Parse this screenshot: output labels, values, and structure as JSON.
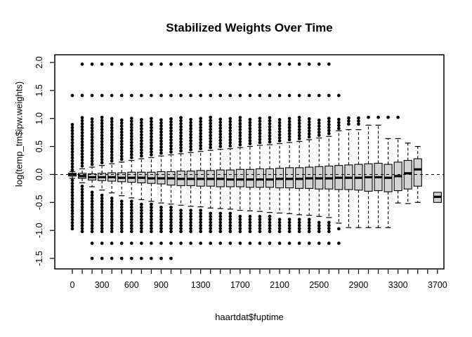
{
  "title": "Stabilized Weights Over Time",
  "colors": {
    "background": "#ffffff",
    "box_fill": "#d3d3d3",
    "stroke": "#000000",
    "reference_line": "#000000"
  },
  "chart_data": {
    "type": "boxplot",
    "title": "Stabilized Weights Over Time",
    "xlabel": "haartdat$fuptime",
    "ylabel": "log(temp_tm$ipw.weights)",
    "grid": false,
    "reference_line_y": 0,
    "reference_line_style": "dashed",
    "xlim": [
      -178,
      3765
    ],
    "ylim": [
      -1.6875,
      2.1375
    ],
    "x_minor_tick_step": 100,
    "x_minor_tick_max": 3700,
    "x_ticks": [
      {
        "v": 0,
        "label": "0"
      },
      {
        "v": 300,
        "label": "300"
      },
      {
        "v": 600,
        "label": "600"
      },
      {
        "v": 900,
        "label": "900"
      },
      {
        "v": 1300,
        "label": "1300"
      },
      {
        "v": 1700,
        "label": "1700"
      },
      {
        "v": 2100,
        "label": "2100"
      },
      {
        "v": 2500,
        "label": "2500"
      },
      {
        "v": 2900,
        "label": "2900"
      },
      {
        "v": 3300,
        "label": "3300"
      },
      {
        "v": 3700,
        "label": "3700"
      }
    ],
    "y_ticks": [
      {
        "v": -1.5,
        "label": "-1.5"
      },
      {
        "v": -1.0,
        "label": "-1.0"
      },
      {
        "v": -0.5,
        "label": "-0.5"
      },
      {
        "v": 0.0,
        "label": "0.0"
      },
      {
        "v": 0.5,
        "label": "0.5"
      },
      {
        "v": 1.0,
        "label": "1.0"
      },
      {
        "v": 1.5,
        "label": "1.5"
      },
      {
        "v": 2.0,
        "label": "2.0"
      }
    ],
    "outlier_dot_step": 0.054,
    "boxes": [
      {
        "d": 0,
        "q1": -0.03,
        "m": 0.0,
        "q3": 0.02,
        "lo": -0.07,
        "hi": 0.05,
        "oh": [
          0.08,
          0.92
        ],
        "ol": [
          -0.97,
          -0.1
        ],
        "x": [
          1.41
        ]
      },
      {
        "d": 100,
        "q1": -0.07,
        "m": -0.03,
        "q3": 0.02,
        "lo": -0.15,
        "hi": 0.1,
        "oh": [
          0.15,
          1.02
        ],
        "ol": [
          -1.02,
          -0.2
        ],
        "x": [
          1.41,
          1.97
        ]
      },
      {
        "d": 200,
        "q1": -0.1,
        "m": -0.05,
        "q3": 0.01,
        "lo": -0.22,
        "hi": 0.13,
        "oh": [
          0.18,
          1.02
        ],
        "ol": [
          -1.02,
          -0.27
        ],
        "x": [
          1.41,
          1.97,
          -1.23,
          -1.5
        ]
      },
      {
        "d": 300,
        "q1": -0.11,
        "m": -0.05,
        "q3": 0.02,
        "lo": -0.28,
        "hi": 0.16,
        "oh": [
          0.21,
          1.02
        ],
        "ol": [
          -1.02,
          -0.33
        ],
        "x": [
          1.41,
          1.97,
          -1.23,
          -1.5
        ]
      },
      {
        "d": 400,
        "q1": -0.12,
        "m": -0.05,
        "q3": 0.03,
        "lo": -0.33,
        "hi": 0.19,
        "oh": [
          0.24,
          1.02
        ],
        "ol": [
          -1.02,
          -0.38
        ],
        "x": [
          1.41,
          1.97,
          -1.23,
          -1.5
        ]
      },
      {
        "d": 500,
        "q1": -0.13,
        "m": -0.06,
        "q3": 0.03,
        "lo": -0.38,
        "hi": 0.22,
        "oh": [
          0.27,
          1.02
        ],
        "ol": [
          -1.02,
          -0.43
        ],
        "x": [
          1.41,
          1.97,
          -1.23,
          -1.5
        ]
      },
      {
        "d": 600,
        "q1": -0.14,
        "m": -0.06,
        "q3": 0.04,
        "lo": -0.42,
        "hi": 0.25,
        "oh": [
          0.3,
          1.02
        ],
        "ol": [
          -1.02,
          -0.47
        ],
        "x": [
          1.41,
          1.97,
          -1.23,
          -1.5
        ]
      },
      {
        "d": 700,
        "q1": -0.15,
        "m": -0.06,
        "q3": 0.04,
        "lo": -0.45,
        "hi": 0.28,
        "oh": [
          0.33,
          1.02
        ],
        "ol": [
          -1.02,
          -0.5
        ],
        "x": [
          1.41,
          1.97,
          -1.23,
          -1.5
        ]
      },
      {
        "d": 800,
        "q1": -0.16,
        "m": -0.07,
        "q3": 0.04,
        "lo": -0.48,
        "hi": 0.3,
        "oh": [
          0.35,
          1.02
        ],
        "ol": [
          -1.02,
          -0.53
        ],
        "x": [
          1.41,
          1.97,
          -1.23,
          -1.5
        ]
      },
      {
        "d": 900,
        "q1": -0.17,
        "m": -0.07,
        "q3": 0.05,
        "lo": -0.51,
        "hi": 0.33,
        "oh": [
          0.38,
          1.02
        ],
        "ol": [
          -1.02,
          -0.56
        ],
        "x": [
          1.41,
          1.97,
          -1.23,
          -1.5
        ]
      },
      {
        "d": 1000,
        "q1": -0.19,
        "m": -0.07,
        "q3": 0.05,
        "lo": -0.53,
        "hi": 0.35,
        "oh": [
          0.4,
          1.02
        ],
        "ol": [
          -1.02,
          -0.58
        ],
        "x": [
          1.41,
          1.97,
          -1.23,
          -1.5
        ]
      },
      {
        "d": 1100,
        "q1": -0.2,
        "m": -0.08,
        "q3": 0.06,
        "lo": -0.55,
        "hi": 0.37,
        "oh": [
          0.42,
          1.02
        ],
        "ol": [
          -1.02,
          -0.6
        ],
        "x": [
          1.41,
          1.97,
          -1.23
        ]
      },
      {
        "d": 1200,
        "q1": -0.2,
        "m": -0.08,
        "q3": 0.06,
        "lo": -0.57,
        "hi": 0.39,
        "oh": [
          0.44,
          1.02
        ],
        "ol": [
          -1.02,
          -0.62
        ],
        "x": [
          1.41,
          1.97,
          -1.23
        ]
      },
      {
        "d": 1300,
        "q1": -0.21,
        "m": -0.08,
        "q3": 0.07,
        "lo": -0.58,
        "hi": 0.41,
        "oh": [
          0.46,
          1.02
        ],
        "ol": [
          -1.02,
          -0.64
        ],
        "x": [
          1.41,
          1.97,
          -1.23
        ]
      },
      {
        "d": 1400,
        "q1": -0.21,
        "m": -0.08,
        "q3": 0.07,
        "lo": -0.6,
        "hi": 0.43,
        "oh": [
          0.48,
          1.02
        ],
        "ol": [
          -1.02,
          -0.66
        ],
        "x": [
          1.41,
          1.97,
          -1.23
        ]
      },
      {
        "d": 1500,
        "q1": -0.22,
        "m": -0.08,
        "q3": 0.08,
        "lo": -0.61,
        "hi": 0.45,
        "oh": [
          0.5,
          1.02
        ],
        "ol": [
          -1.02,
          -0.67
        ],
        "x": [
          1.41,
          1.97,
          -1.23
        ]
      },
      {
        "d": 1600,
        "q1": -0.22,
        "m": -0.09,
        "q3": 0.08,
        "lo": -0.62,
        "hi": 0.46,
        "oh": [
          0.51,
          1.02
        ],
        "ol": [
          -1.02,
          -0.69
        ],
        "x": [
          1.41,
          1.97,
          -1.23
        ]
      },
      {
        "d": 1700,
        "q1": -0.22,
        "m": -0.09,
        "q3": 0.09,
        "lo": -0.64,
        "hi": 0.48,
        "oh": [
          0.53,
          1.02
        ],
        "ol": [
          -1.02,
          -0.7
        ],
        "x": [
          1.41,
          1.97,
          -1.23
        ]
      },
      {
        "d": 1800,
        "q1": -0.23,
        "m": -0.09,
        "q3": 0.09,
        "lo": -0.65,
        "hi": 0.5,
        "oh": [
          0.55,
          1.02
        ],
        "ol": [
          -1.02,
          -0.72
        ],
        "x": [
          1.41,
          1.97,
          -1.23
        ]
      },
      {
        "d": 1900,
        "q1": -0.23,
        "m": -0.09,
        "q3": 0.1,
        "lo": -0.66,
        "hi": 0.52,
        "oh": [
          0.57,
          1.02
        ],
        "ol": [
          -1.02,
          -0.73
        ],
        "x": [
          1.41,
          1.97,
          -1.23
        ]
      },
      {
        "d": 2000,
        "q1": -0.23,
        "m": -0.09,
        "q3": 0.1,
        "lo": -0.68,
        "hi": 0.53,
        "oh": [
          0.58,
          1.02
        ],
        "ol": [
          -1.02,
          -0.75
        ],
        "x": [
          1.41,
          1.97,
          -1.23
        ]
      },
      {
        "d": 2100,
        "q1": -0.24,
        "m": -0.08,
        "q3": 0.11,
        "lo": -0.69,
        "hi": 0.55,
        "oh": [
          0.6,
          1.02
        ],
        "ol": [
          -1.02,
          -0.76
        ],
        "x": [
          1.41,
          1.97,
          -1.23
        ]
      },
      {
        "d": 2200,
        "q1": -0.24,
        "m": -0.08,
        "q3": 0.12,
        "lo": -0.7,
        "hi": 0.57,
        "oh": [
          0.62,
          1.02
        ],
        "ol": [
          -1.02,
          -0.77
        ],
        "x": [
          1.41,
          1.97,
          -1.23
        ]
      },
      {
        "d": 2300,
        "q1": -0.25,
        "m": -0.08,
        "q3": 0.12,
        "lo": -0.72,
        "hi": 0.59,
        "oh": [
          0.64,
          1.02
        ],
        "ol": [
          -1.02,
          -0.79
        ],
        "x": [
          1.41,
          1.97,
          -1.23
        ]
      },
      {
        "d": 2400,
        "q1": -0.25,
        "m": -0.07,
        "q3": 0.13,
        "lo": -0.73,
        "hi": 0.62,
        "oh": [
          0.67,
          1.02
        ],
        "ol": [
          -1.02,
          -0.8
        ],
        "x": [
          1.41,
          1.97,
          -1.23
        ]
      },
      {
        "d": 2500,
        "q1": -0.26,
        "m": -0.07,
        "q3": 0.14,
        "lo": -0.75,
        "hi": 0.65,
        "oh": [
          0.7,
          1.02
        ],
        "ol": [
          -1.02,
          -0.82
        ],
        "x": [
          1.41,
          1.97,
          -1.23
        ]
      },
      {
        "d": 2600,
        "q1": -0.26,
        "m": -0.07,
        "q3": 0.15,
        "lo": -0.77,
        "hi": 0.68,
        "oh": [
          0.73,
          1.02
        ],
        "ol": [
          -1.02,
          -0.84
        ],
        "x": [
          1.41,
          1.97,
          -1.23
        ]
      },
      {
        "d": 2700,
        "q1": -0.27,
        "m": -0.06,
        "q3": 0.16,
        "lo": -0.87,
        "hi": 0.78,
        "oh": [
          0.82,
          1.02
        ],
        "ol": [
          -0.97,
          -0.97
        ],
        "x": [
          1.41,
          -1.23
        ]
      },
      {
        "d": 2800,
        "q1": -0.27,
        "m": -0.06,
        "q3": 0.17,
        "lo": -0.95,
        "hi": 0.8,
        "oh": [
          0.9,
          1.02
        ],
        "ol": null,
        "x": []
      },
      {
        "d": 2900,
        "q1": -0.28,
        "m": -0.06,
        "q3": 0.18,
        "lo": -0.95,
        "hi": 0.8,
        "oh": [
          0.9,
          1.02
        ],
        "ol": null,
        "x": []
      },
      {
        "d": 3000,
        "q1": -0.3,
        "m": -0.05,
        "q3": 0.19,
        "lo": -0.95,
        "hi": 0.88,
        "oh": [
          1.02,
          1.02
        ],
        "ol": null,
        "x": []
      },
      {
        "d": 3100,
        "q1": -0.29,
        "m": -0.05,
        "q3": 0.2,
        "lo": -0.95,
        "hi": 0.88,
        "oh": [
          1.02,
          1.02
        ],
        "ol": null,
        "x": []
      },
      {
        "d": 3200,
        "q1": -0.31,
        "m": -0.06,
        "q3": 0.18,
        "lo": -0.95,
        "hi": 0.64,
        "oh": [
          1.02,
          1.02
        ],
        "ol": null,
        "x": []
      },
      {
        "d": 3300,
        "q1": -0.29,
        "m": -0.03,
        "q3": 0.22,
        "lo": -0.51,
        "hi": 0.64,
        "oh": [
          1.02,
          1.02
        ],
        "ol": null,
        "x": []
      },
      {
        "d": 3400,
        "q1": -0.26,
        "m": 0.02,
        "q3": 0.25,
        "lo": -0.52,
        "hi": 0.56,
        "oh": null,
        "ol": null,
        "x": []
      },
      {
        "d": 3500,
        "q1": -0.21,
        "m": 0.09,
        "q3": 0.28,
        "lo": -0.5,
        "hi": 0.5,
        "oh": null,
        "ol": null,
        "x": []
      },
      {
        "d": 3700,
        "q1": -0.5,
        "m": -0.4,
        "q3": -0.32,
        "lo": null,
        "hi": null,
        "oh": null,
        "ol": null,
        "x": []
      }
    ]
  }
}
